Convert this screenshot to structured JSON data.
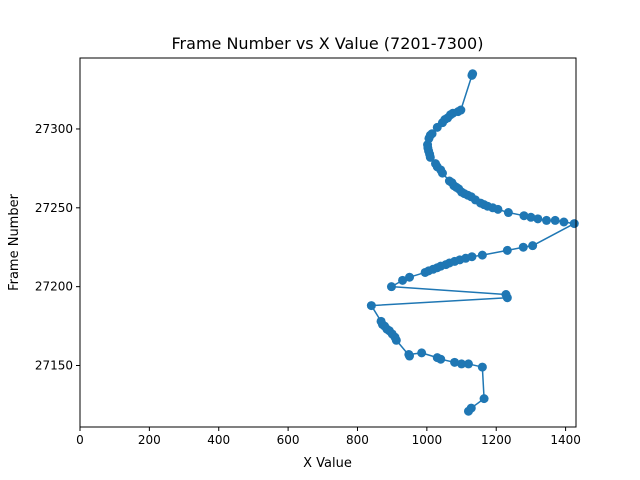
{
  "chart_data": {
    "type": "line",
    "title": "Frame Number vs X Value (7201-7300)",
    "xlabel": "X Value",
    "ylabel": "Frame Number",
    "xlim": [
      0,
      1430
    ],
    "ylim": [
      27111,
      27345
    ],
    "xticks": [
      0,
      200,
      400,
      600,
      800,
      1000,
      1200,
      1400
    ],
    "yticks": [
      27150,
      27200,
      27250,
      27300
    ],
    "grid": false,
    "markers": true,
    "series": [
      {
        "color": "#1f77b4",
        "points": [
          [
            1120,
            27121
          ],
          [
            1128,
            27123
          ],
          [
            1165,
            27129
          ],
          [
            1160,
            27149
          ],
          [
            1120,
            27151
          ],
          [
            1100,
            27151
          ],
          [
            1080,
            27152
          ],
          [
            1040,
            27154
          ],
          [
            1030,
            27155
          ],
          [
            985,
            27158
          ],
          [
            948,
            27157
          ],
          [
            950,
            27156
          ],
          [
            912,
            27166
          ],
          [
            908,
            27168
          ],
          [
            900,
            27170
          ],
          [
            892,
            27172
          ],
          [
            885,
            27173
          ],
          [
            878,
            27175
          ],
          [
            872,
            27176
          ],
          [
            868,
            27178
          ],
          [
            840,
            27188
          ],
          [
            1232,
            27193
          ],
          [
            1228,
            27195
          ],
          [
            898,
            27200
          ],
          [
            930,
            27204
          ],
          [
            950,
            27206
          ],
          [
            995,
            27209
          ],
          [
            1005,
            27210
          ],
          [
            1018,
            27211
          ],
          [
            1030,
            27212
          ],
          [
            1040,
            27213
          ],
          [
            1055,
            27214
          ],
          [
            1065,
            27215
          ],
          [
            1080,
            27216
          ],
          [
            1095,
            27217
          ],
          [
            1112,
            27218
          ],
          [
            1130,
            27219
          ],
          [
            1160,
            27220
          ],
          [
            1232,
            27223
          ],
          [
            1278,
            27225
          ],
          [
            1305,
            27226
          ],
          [
            1425,
            27240
          ],
          [
            1395,
            27241
          ],
          [
            1370,
            27242
          ],
          [
            1345,
            27242
          ],
          [
            1320,
            27243
          ],
          [
            1300,
            27244
          ],
          [
            1280,
            27245
          ],
          [
            1235,
            27247
          ],
          [
            1205,
            27249
          ],
          [
            1190,
            27250
          ],
          [
            1175,
            27251
          ],
          [
            1165,
            27252
          ],
          [
            1155,
            27253
          ],
          [
            1140,
            27255
          ],
          [
            1128,
            27257
          ],
          [
            1118,
            27258
          ],
          [
            1108,
            27259
          ],
          [
            1100,
            27260
          ],
          [
            1092,
            27262
          ],
          [
            1085,
            27263
          ],
          [
            1078,
            27264
          ],
          [
            1072,
            27266
          ],
          [
            1065,
            27267
          ],
          [
            1045,
            27272
          ],
          [
            1040,
            27274
          ],
          [
            1030,
            27276
          ],
          [
            1025,
            27278
          ],
          [
            1010,
            27282
          ],
          [
            1008,
            27284
          ],
          [
            1005,
            27286
          ],
          [
            1003,
            27288
          ],
          [
            1002,
            27290
          ],
          [
            1006,
            27294
          ],
          [
            1010,
            27296
          ],
          [
            1015,
            27297
          ],
          [
            1030,
            27301
          ],
          [
            1045,
            27304
          ],
          [
            1052,
            27306
          ],
          [
            1060,
            27307
          ],
          [
            1068,
            27309
          ],
          [
            1075,
            27310
          ],
          [
            1090,
            27311
          ],
          [
            1098,
            27312
          ],
          [
            1130,
            27334
          ],
          [
            1132,
            27335
          ]
        ]
      }
    ]
  }
}
